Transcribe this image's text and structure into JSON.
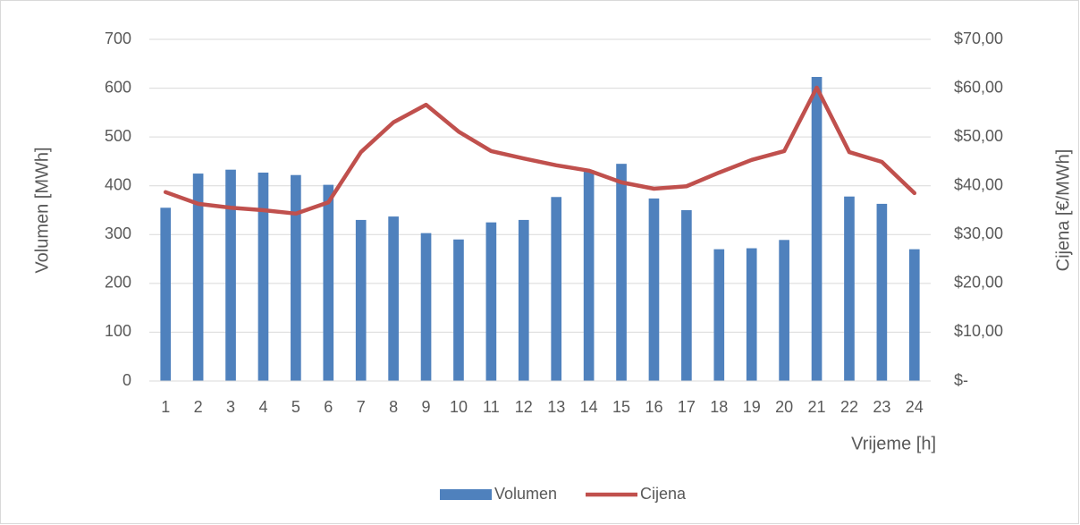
{
  "chart_data": {
    "type": "bar_line",
    "x_label": "Vrijeme [h]",
    "y_label": "Volumen [MWh]",
    "y2_label": "Cijena [€/MWh]",
    "categories": [
      "1",
      "2",
      "3",
      "4",
      "5",
      "6",
      "7",
      "8",
      "9",
      "10",
      "11",
      "12",
      "13",
      "14",
      "15",
      "16",
      "17",
      "18",
      "19",
      "20",
      "21",
      "22",
      "23",
      "24"
    ],
    "series": [
      {
        "name": "Volumen",
        "type": "bar",
        "color": "#4f81bd",
        "values": [
          355,
          425,
          433,
          427,
          422,
          402,
          330,
          337,
          303,
          290,
          325,
          330,
          377,
          432,
          445,
          374,
          350,
          270,
          272,
          289,
          623,
          378,
          363,
          270
        ]
      },
      {
        "name": "Cijena",
        "type": "line",
        "axis": "y2",
        "color": "#c0504d",
        "values": [
          38.7,
          36.3,
          35.5,
          35.0,
          34.3,
          36.6,
          46.9,
          53.0,
          56.6,
          51.1,
          47.1,
          45.6,
          44.2,
          43.1,
          40.7,
          39.4,
          39.9,
          42.7,
          45.3,
          47.1,
          60.1,
          46.9,
          44.9,
          38.5
        ]
      }
    ],
    "ylim": [
      0,
      700
    ],
    "yticks": [
      0,
      100,
      200,
      300,
      400,
      500,
      600,
      700
    ],
    "y2lim": [
      0,
      70
    ],
    "y2ticks": [
      {
        "value": 0,
        "label": "$-"
      },
      {
        "value": 10,
        "label": "$10,00"
      },
      {
        "value": 20,
        "label": "$20,00"
      },
      {
        "value": 30,
        "label": "$30,00"
      },
      {
        "value": 40,
        "label": "$40,00"
      },
      {
        "value": 50,
        "label": "$50,00"
      },
      {
        "value": 60,
        "label": "$60,00"
      },
      {
        "value": 70,
        "label": "$70,00"
      }
    ],
    "grid": true,
    "legend": "bottom"
  }
}
